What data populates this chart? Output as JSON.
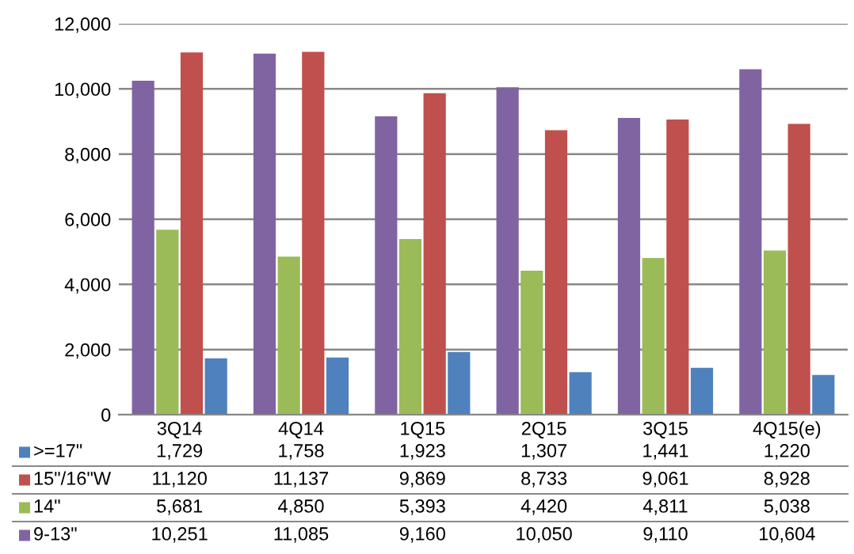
{
  "chart_data": {
    "type": "bar",
    "categories": [
      "3Q14",
      "4Q14",
      "1Q15",
      "2Q15",
      "3Q15",
      "4Q15(e)"
    ],
    "series": [
      {
        "name": ">=17\"",
        "color": "#4f81bd",
        "values": [
          1729,
          1758,
          1923,
          1307,
          1441,
          1220
        ],
        "value_labels": [
          "1,729",
          "1,758",
          "1,923",
          "1,307",
          "1,441",
          "1,220"
        ]
      },
      {
        "name": "15\"/16\"W",
        "color": "#c0504d",
        "values": [
          11120,
          11137,
          9869,
          8733,
          9061,
          8928
        ],
        "value_labels": [
          "11,120",
          "11,137",
          "9,869",
          "8,733",
          "9,061",
          "8,928"
        ]
      },
      {
        "name": "14\"",
        "color": "#9bbb59",
        "values": [
          5681,
          4850,
          5393,
          4420,
          4811,
          5038
        ],
        "value_labels": [
          "5,681",
          "4,850",
          "5,393",
          "4,420",
          "4,811",
          "5,038"
        ]
      },
      {
        "name": "9-13\"",
        "color": "#8064a2",
        "values": [
          10251,
          11085,
          9160,
          10050,
          9110,
          10604
        ],
        "value_labels": [
          "10,251",
          "11,085",
          "9,160",
          "10,050",
          "9,110",
          "10,604"
        ]
      }
    ],
    "ylim": [
      0,
      12000
    ],
    "yticks": [
      0,
      {
        "value": 2000,
        "label": "2,000"
      },
      {
        "value": 4000,
        "label": "4,000"
      },
      {
        "value": 6000,
        "label": "6,000"
      },
      {
        "value": 8000,
        "label": "8,000"
      },
      {
        "value": 10000,
        "label": "10,000"
      },
      {
        "value": 12000,
        "label": "12,000"
      }
    ],
    "grid": "y",
    "legend": "bottom left"
  }
}
